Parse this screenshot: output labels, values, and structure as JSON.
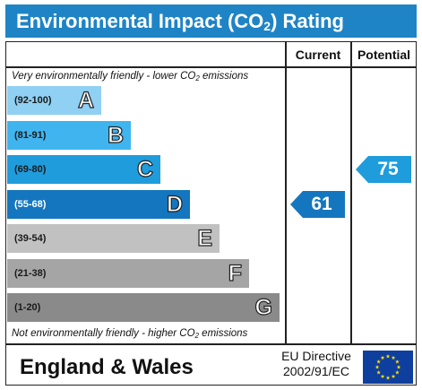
{
  "header": {
    "title_prefix": "Environmental Impact (CO",
    "title_sub": "2",
    "title_suffix": ") Rating"
  },
  "columns": {
    "current": "Current",
    "potential": "Potential"
  },
  "notes": {
    "top_prefix": "Very environmentally friendly - lower CO",
    "top_sub": "2",
    "top_suffix": " emissions",
    "bottom_prefix": "Not environmentally friendly - higher CO",
    "bottom_sub": "2",
    "bottom_suffix": " emissions"
  },
  "chart_data": {
    "type": "bar",
    "categories": [
      "A",
      "B",
      "C",
      "D",
      "E",
      "F",
      "G"
    ],
    "bands": [
      {
        "letter": "A",
        "range": "(92-100)",
        "color": "#8fd0f3"
      },
      {
        "letter": "B",
        "range": "(81-91)",
        "color": "#3fb4ee"
      },
      {
        "letter": "C",
        "range": "(69-80)",
        "color": "#1f9cdc"
      },
      {
        "letter": "D",
        "range": "(55-68)",
        "color": "#1476be"
      },
      {
        "letter": "E",
        "range": "(39-54)",
        "color": "#c1c1c1"
      },
      {
        "letter": "F",
        "range": "(21-38)",
        "color": "#a5a5a5"
      },
      {
        "letter": "G",
        "range": "(1-20)",
        "color": "#8a8a8a"
      }
    ],
    "current": {
      "value": 61,
      "band": "D",
      "color": "#1476be"
    },
    "potential": {
      "value": 75,
      "band": "C",
      "color": "#1f9cdc"
    }
  },
  "footer": {
    "region": "England & Wales",
    "directive_line1": "EU Directive",
    "directive_line2": "2002/91/EC"
  }
}
